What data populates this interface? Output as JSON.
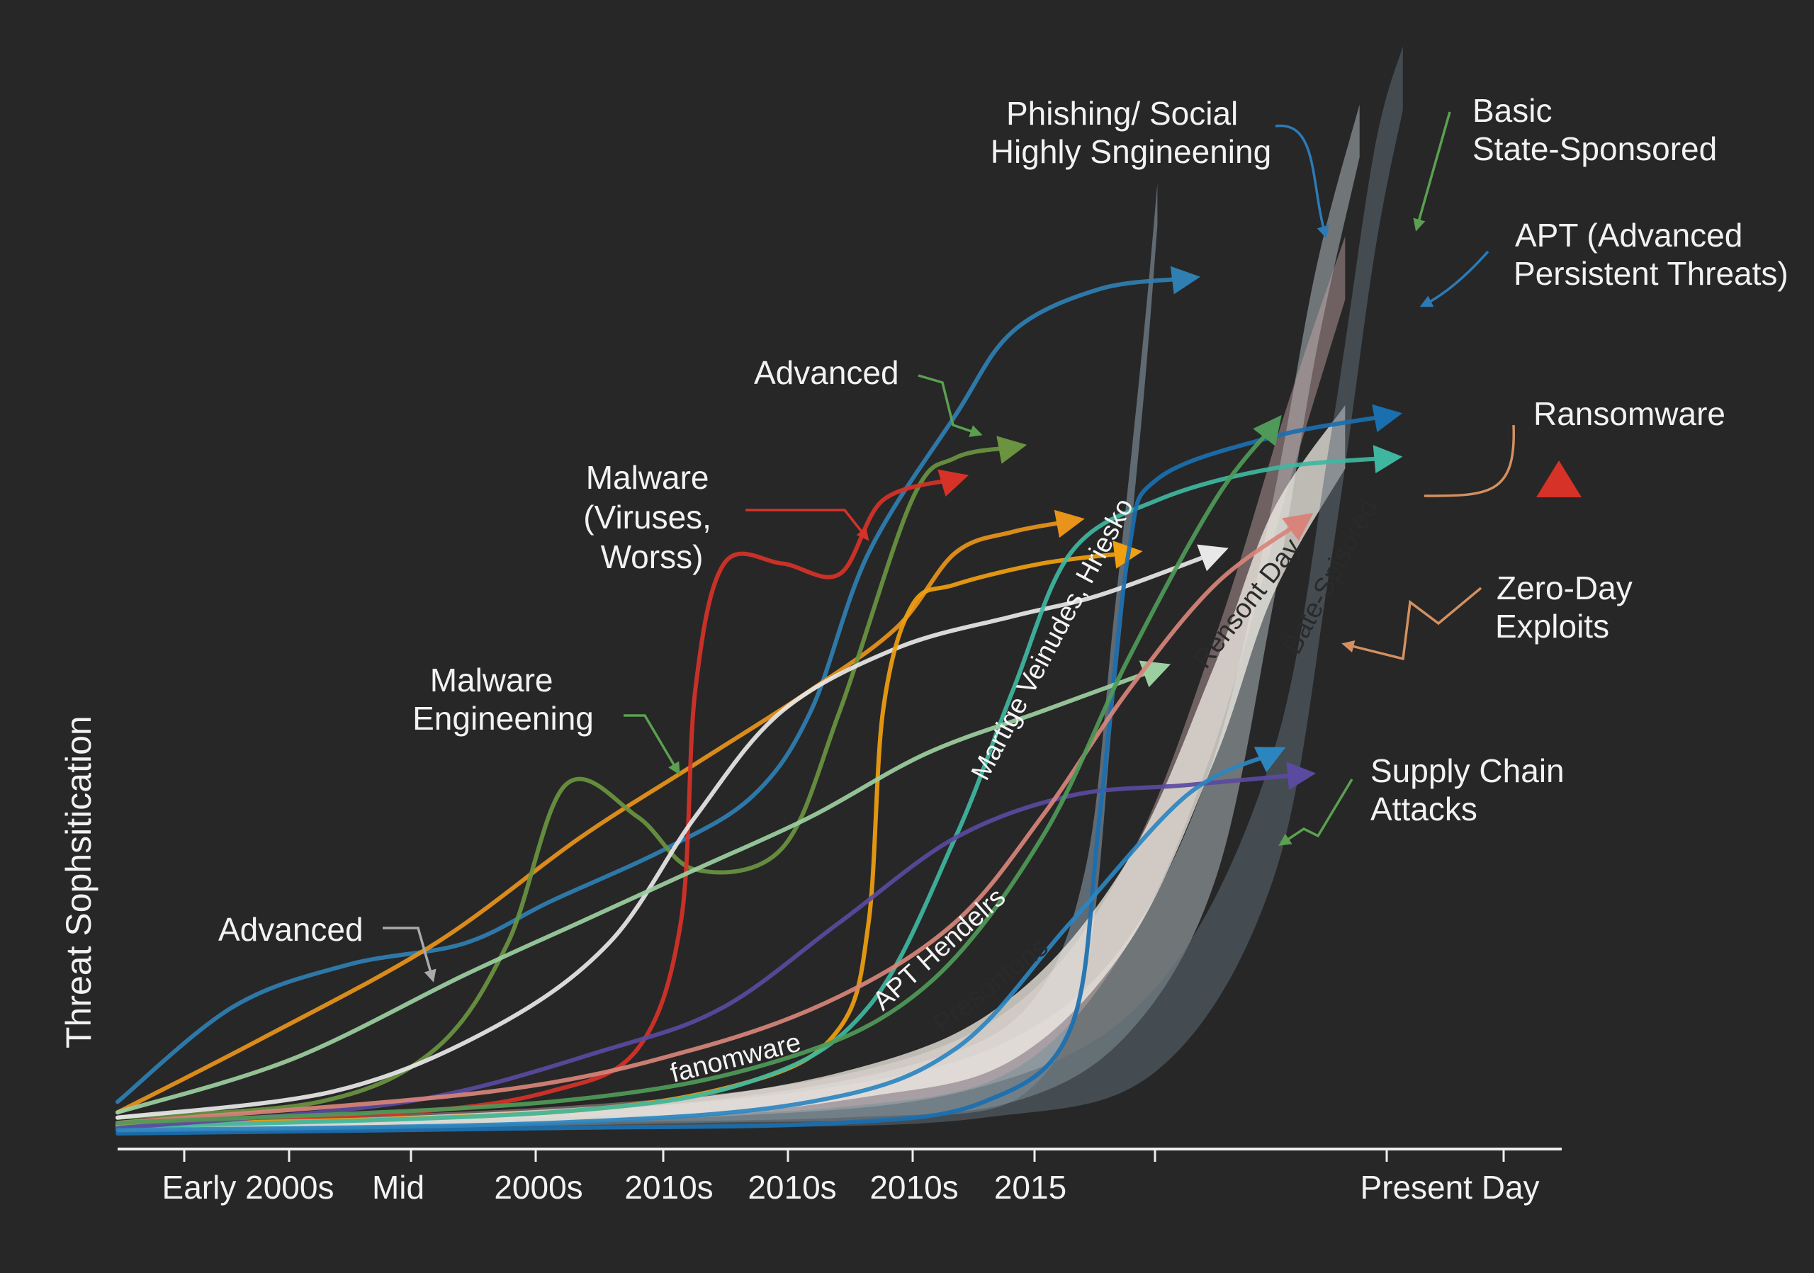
{
  "chart_data": {
    "type": "area",
    "title": "",
    "xlabel": "",
    "ylabel": "Threat  Sophsitication",
    "x_ticks": [
      "Early 2000s",
      "Mid",
      "2000s",
      "2010s",
      "2010s",
      "2010s",
      "2015",
      "",
      "",
      "Present Day",
      ""
    ],
    "grid": false,
    "legend": "none",
    "y_range": [
      0,
      100
    ],
    "x_range": [
      0,
      100
    ],
    "annotations": [
      {
        "id": "phishing",
        "lines": [
          "Phishing/ Social",
          "Highly Sngineening"
        ]
      },
      {
        "id": "basic-state",
        "lines": [
          "Basic",
          "State-Sponsored"
        ]
      },
      {
        "id": "apt",
        "lines": [
          "APT (Advanced",
          "Persistent Threats)"
        ]
      },
      {
        "id": "advanced-top",
        "lines": [
          "Advanced"
        ]
      },
      {
        "id": "ransomware",
        "lines": [
          "Ransomware"
        ]
      },
      {
        "id": "malware-viruses",
        "lines": [
          "Malware",
          "(Viruses,",
          "Worss)"
        ]
      },
      {
        "id": "zero-day",
        "lines": [
          "Zero-Day",
          "Exploits"
        ]
      },
      {
        "id": "malware-engineering",
        "lines": [
          "Malware",
          "Engineening"
        ]
      },
      {
        "id": "supply-chain",
        "lines": [
          "Supply Chain",
          "Attacks"
        ]
      },
      {
        "id": "advanced-bottom",
        "lines": [
          "Advanced"
        ]
      }
    ],
    "inline_labels": [
      {
        "id": "martige",
        "text": "Martige Veinudes, Hriesko"
      },
      {
        "id": "ransont-day",
        "text": "Rensont Day"
      },
      {
        "id": "bate-spisored",
        "text": "Bate-Spisored"
      },
      {
        "id": "apt-hendelrs",
        "text": "APT Hendelrs"
      },
      {
        "id": "presontons",
        "text": "Presontons"
      },
      {
        "id": "ranomware",
        "text": "fanomware"
      }
    ],
    "ribbons": [
      {
        "name": "",
        "color": "#8fa3b0",
        "opacity": 0.55,
        "points": [
          [
            0,
            0.4
          ],
          [
            20,
            1
          ],
          [
            40,
            2
          ],
          [
            55,
            4
          ],
          [
            63,
            8
          ],
          [
            67,
            20
          ],
          [
            69,
            45
          ],
          [
            71,
            72
          ],
          [
            72,
            88
          ]
        ],
        "width": [
          0.4,
          1,
          2,
          5,
          8,
          10,
          8,
          6,
          4
        ]
      },
      {
        "name": "",
        "color": "#b9c3c9",
        "opacity": 0.5,
        "points": [
          [
            0,
            0.6
          ],
          [
            30,
            1.5
          ],
          [
            50,
            3
          ],
          [
            62,
            6
          ],
          [
            70,
            14
          ],
          [
            76,
            30
          ],
          [
            80,
            55
          ],
          [
            83,
            78
          ],
          [
            86,
            95
          ]
        ],
        "width": [
          0.5,
          1,
          3,
          6,
          9,
          12,
          10,
          8,
          5
        ]
      },
      {
        "name": "",
        "color": "#c7a9a9",
        "opacity": 0.45,
        "points": [
          [
            0,
            0.8
          ],
          [
            30,
            2
          ],
          [
            50,
            4
          ],
          [
            62,
            9
          ],
          [
            70,
            22
          ],
          [
            76,
            42
          ],
          [
            81,
            65
          ],
          [
            85,
            82
          ]
        ],
        "width": [
          0.5,
          1,
          3,
          6,
          8,
          10,
          8,
          6
        ]
      },
      {
        "name": "",
        "color": "#f2ede6",
        "opacity": 0.75,
        "points": [
          [
            0,
            0.4
          ],
          [
            35,
            2
          ],
          [
            52,
            5
          ],
          [
            62,
            10
          ],
          [
            70,
            22
          ],
          [
            76,
            40
          ],
          [
            80,
            55
          ],
          [
            85,
            66
          ]
        ],
        "width": [
          0.5,
          1.5,
          3,
          6,
          8,
          9,
          8,
          6
        ]
      },
      {
        "name": "",
        "color": "#5c6b74",
        "opacity": 0.55,
        "points": [
          [
            0,
            0.2
          ],
          [
            40,
            1
          ],
          [
            60,
            3
          ],
          [
            72,
            10
          ],
          [
            80,
            30
          ],
          [
            84,
            60
          ],
          [
            87,
            88
          ],
          [
            89,
            100
          ]
        ],
        "width": [
          0.3,
          1,
          3,
          8,
          12,
          12,
          10,
          6
        ]
      }
    ],
    "series": [
      {
        "name": "",
        "color": "#2f7fb3",
        "points": [
          [
            0,
            3
          ],
          [
            8,
            12
          ],
          [
            16,
            16
          ],
          [
            24,
            18
          ],
          [
            30,
            22
          ],
          [
            38,
            27
          ],
          [
            44,
            32
          ],
          [
            48,
            40
          ],
          [
            52,
            55
          ],
          [
            58,
            68
          ],
          [
            62,
            76
          ],
          [
            68,
            80
          ],
          [
            74,
            81
          ]
        ]
      },
      {
        "name": "",
        "color": "#e8941a",
        "points": [
          [
            0,
            2
          ],
          [
            10,
            9
          ],
          [
            22,
            18
          ],
          [
            32,
            28
          ],
          [
            40,
            35
          ],
          [
            48,
            42
          ],
          [
            54,
            48
          ],
          [
            58,
            55
          ],
          [
            62,
            57
          ],
          [
            66,
            58
          ]
        ]
      },
      {
        "name": "",
        "color": "#6a9440",
        "points": [
          [
            0,
            1.5
          ],
          [
            14,
            3
          ],
          [
            22,
            8
          ],
          [
            27,
            18
          ],
          [
            31,
            33
          ],
          [
            36,
            30
          ],
          [
            40,
            25
          ],
          [
            46,
            27
          ],
          [
            50,
            40
          ],
          [
            55,
            60
          ],
          [
            58,
            64
          ],
          [
            62,
            65
          ]
        ]
      },
      {
        "name": "",
        "color": "#d63228",
        "points": [
          [
            0,
            1
          ],
          [
            20,
            2
          ],
          [
            30,
            4
          ],
          [
            36,
            8
          ],
          [
            39,
            20
          ],
          [
            40,
            42
          ],
          [
            42,
            54
          ],
          [
            46,
            54
          ],
          [
            50,
            53
          ],
          [
            53,
            60
          ],
          [
            58,
            62
          ]
        ]
      },
      {
        "name": "",
        "color": "#e8e8e8",
        "points": [
          [
            0,
            1.5
          ],
          [
            15,
            4
          ],
          [
            26,
            10
          ],
          [
            34,
            18
          ],
          [
            40,
            30
          ],
          [
            46,
            40
          ],
          [
            54,
            46
          ],
          [
            62,
            49
          ],
          [
            68,
            51
          ],
          [
            76,
            55
          ]
        ]
      },
      {
        "name": "",
        "color": "#f0a010",
        "points": [
          [
            0,
            0.8
          ],
          [
            30,
            2
          ],
          [
            44,
            5
          ],
          [
            50,
            10
          ],
          [
            52,
            20
          ],
          [
            53,
            40
          ],
          [
            55,
            50
          ],
          [
            58,
            52
          ],
          [
            64,
            54
          ],
          [
            70,
            55
          ]
        ]
      },
      {
        "name": "",
        "color": "#3fb7a0",
        "points": [
          [
            0,
            0.6
          ],
          [
            30,
            2
          ],
          [
            44,
            5
          ],
          [
            52,
            12
          ],
          [
            58,
            28
          ],
          [
            62,
            42
          ],
          [
            66,
            55
          ],
          [
            72,
            60
          ],
          [
            80,
            63
          ],
          [
            88,
            64
          ]
        ]
      },
      {
        "name": "",
        "color": "#5a4aa0",
        "points": [
          [
            0,
            0.5
          ],
          [
            20,
            3
          ],
          [
            34,
            8
          ],
          [
            42,
            12
          ],
          [
            50,
            20
          ],
          [
            58,
            28
          ],
          [
            66,
            32
          ],
          [
            74,
            33
          ],
          [
            82,
            34
          ]
        ]
      },
      {
        "name": "",
        "color": "#1a6fb0",
        "points": [
          [
            0,
            0
          ],
          [
            30,
            0.5
          ],
          [
            50,
            1
          ],
          [
            60,
            3
          ],
          [
            66,
            10
          ],
          [
            68,
            30
          ],
          [
            70,
            55
          ],
          [
            72,
            62
          ],
          [
            80,
            66
          ],
          [
            88,
            68
          ]
        ]
      },
      {
        "name": "",
        "color": "#9ccfa0",
        "points": [
          [
            0,
            2
          ],
          [
            12,
            7
          ],
          [
            24,
            15
          ],
          [
            32,
            20
          ],
          [
            40,
            25
          ],
          [
            48,
            30
          ],
          [
            56,
            36
          ],
          [
            64,
            40
          ],
          [
            72,
            44
          ]
        ]
      },
      {
        "name": "",
        "color": "#d8847a",
        "points": [
          [
            0,
            1
          ],
          [
            26,
            4
          ],
          [
            40,
            8
          ],
          [
            50,
            13
          ],
          [
            58,
            20
          ],
          [
            64,
            30
          ],
          [
            70,
            42
          ],
          [
            76,
            52
          ],
          [
            82,
            58
          ]
        ]
      },
      {
        "name": "",
        "color": "#4f9a58",
        "points": [
          [
            0,
            1
          ],
          [
            30,
            3
          ],
          [
            46,
            7
          ],
          [
            56,
            14
          ],
          [
            64,
            28
          ],
          [
            70,
            45
          ],
          [
            76,
            60
          ],
          [
            80,
            67
          ]
        ]
      },
      {
        "name": "",
        "color": "#2b86c0",
        "points": [
          [
            0,
            0.3
          ],
          [
            30,
            1
          ],
          [
            48,
            3
          ],
          [
            58,
            8
          ],
          [
            66,
            20
          ],
          [
            74,
            32
          ],
          [
            80,
            36
          ]
        ]
      }
    ]
  }
}
